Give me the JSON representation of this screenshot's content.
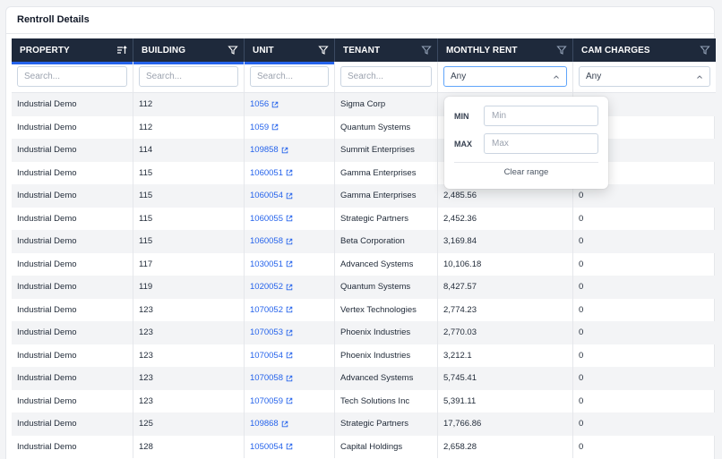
{
  "panel": {
    "title": "Rentroll Details"
  },
  "columns": [
    {
      "label": "PROPERTY",
      "icon": "sort-ascending-icon"
    },
    {
      "label": "BUILDING",
      "icon": "filter-icon"
    },
    {
      "label": "UNIT",
      "icon": "filter-icon"
    },
    {
      "label": "TENANT",
      "icon": "filter-icon"
    },
    {
      "label": "MONTHLY RENT",
      "icon": "filter-icon"
    },
    {
      "label": "CAM CHARGES",
      "icon": "filter-icon"
    }
  ],
  "filters": {
    "property_placeholder": "Search...",
    "building_placeholder": "Search...",
    "unit_placeholder": "Search...",
    "tenant_placeholder": "Search...",
    "monthly_rent_value": "Any",
    "cam_charges_value": "Any"
  },
  "range_popup": {
    "min_label": "MIN",
    "min_placeholder": "Min",
    "max_label": "MAX",
    "max_placeholder": "Max",
    "clear_label": "Clear range"
  },
  "rows": [
    {
      "property": "Industrial Demo",
      "building": "112",
      "unit": "1056",
      "tenant": "Sigma Corp",
      "monthly_rent": "",
      "cam_charges": ""
    },
    {
      "property": "Industrial Demo",
      "building": "112",
      "unit": "1059",
      "tenant": "Quantum Systems",
      "monthly_rent": "",
      "cam_charges": ""
    },
    {
      "property": "Industrial Demo",
      "building": "114",
      "unit": "109858",
      "tenant": "Summit Enterprises",
      "monthly_rent": "",
      "cam_charges": ""
    },
    {
      "property": "Industrial Demo",
      "building": "115",
      "unit": "1060051",
      "tenant": "Gamma Enterprises",
      "monthly_rent": "",
      "cam_charges": ""
    },
    {
      "property": "Industrial Demo",
      "building": "115",
      "unit": "1060054",
      "tenant": "Gamma Enterprises",
      "monthly_rent": "2,485.56",
      "cam_charges": "0"
    },
    {
      "property": "Industrial Demo",
      "building": "115",
      "unit": "1060055",
      "tenant": "Strategic Partners",
      "monthly_rent": "2,452.36",
      "cam_charges": "0"
    },
    {
      "property": "Industrial Demo",
      "building": "115",
      "unit": "1060058",
      "tenant": "Beta Corporation",
      "monthly_rent": "3,169.84",
      "cam_charges": "0"
    },
    {
      "property": "Industrial Demo",
      "building": "117",
      "unit": "1030051",
      "tenant": "Advanced Systems",
      "monthly_rent": "10,106.18",
      "cam_charges": "0"
    },
    {
      "property": "Industrial Demo",
      "building": "119",
      "unit": "1020052",
      "tenant": "Quantum Systems",
      "monthly_rent": "8,427.57",
      "cam_charges": "0"
    },
    {
      "property": "Industrial Demo",
      "building": "123",
      "unit": "1070052",
      "tenant": "Vertex Technologies",
      "monthly_rent": "2,774.23",
      "cam_charges": "0"
    },
    {
      "property": "Industrial Demo",
      "building": "123",
      "unit": "1070053",
      "tenant": "Phoenix Industries",
      "monthly_rent": "2,770.03",
      "cam_charges": "0"
    },
    {
      "property": "Industrial Demo",
      "building": "123",
      "unit": "1070054",
      "tenant": "Phoenix Industries",
      "monthly_rent": "3,212.1",
      "cam_charges": "0"
    },
    {
      "property": "Industrial Demo",
      "building": "123",
      "unit": "1070058",
      "tenant": "Advanced Systems",
      "monthly_rent": "5,745.41",
      "cam_charges": "0"
    },
    {
      "property": "Industrial Demo",
      "building": "123",
      "unit": "1070059",
      "tenant": "Tech Solutions Inc",
      "monthly_rent": "5,391.11",
      "cam_charges": "0"
    },
    {
      "property": "Industrial Demo",
      "building": "125",
      "unit": "109868",
      "tenant": "Strategic Partners",
      "monthly_rent": "17,766.86",
      "cam_charges": "0"
    },
    {
      "property": "Industrial Demo",
      "building": "128",
      "unit": "1050054",
      "tenant": "Capital Holdings",
      "monthly_rent": "2,658.28",
      "cam_charges": "0"
    }
  ]
}
